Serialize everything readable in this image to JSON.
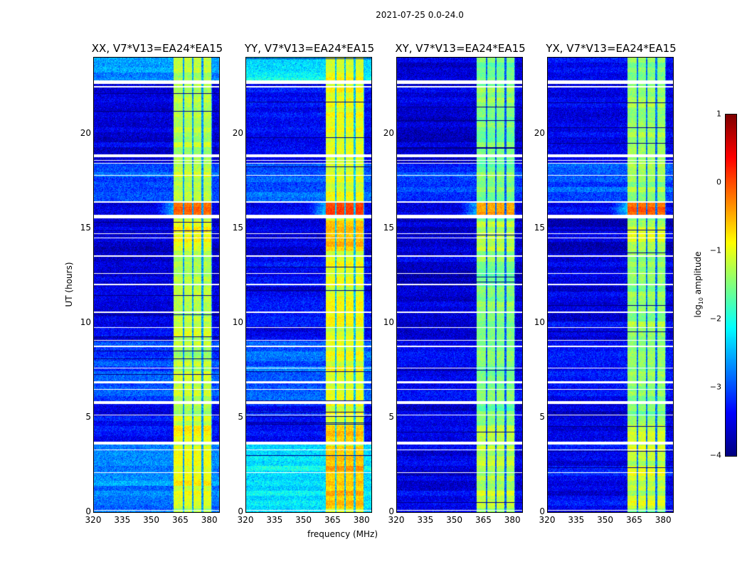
{
  "chart_data": {
    "type": "heatmap",
    "suptitle": "2021-07-25 0.0-24.0",
    "xlabel": "frequency (MHz)",
    "ylabel": "UT (hours)",
    "x_range": [
      320,
      384.7
    ],
    "y_range": [
      0,
      24
    ],
    "xticks": [
      "320",
      "335",
      "350",
      "365",
      "380"
    ],
    "xtick_values": [
      320,
      335,
      350,
      365,
      380
    ],
    "yticks": [
      "0",
      "5",
      "10",
      "15",
      "20"
    ],
    "ytick_values": [
      0,
      5,
      10,
      15,
      20
    ],
    "colorbar": {
      "label_main": "log",
      "label_sub": "10",
      "label_rest": " amplitude",
      "range": [
        -4,
        1
      ],
      "ticks": [
        "1",
        "0",
        "−1",
        "−2",
        "−3",
        "−4"
      ],
      "tick_values": [
        1,
        0,
        -1,
        -2,
        -3,
        -4
      ],
      "colormap": "jet"
    },
    "flagged_hours": [
      [
        22.6,
        22.78
      ],
      [
        22.42,
        22.48
      ],
      [
        18.75,
        18.9
      ],
      [
        18.55,
        18.6
      ],
      [
        18.4,
        18.45
      ],
      [
        17.75,
        17.8
      ],
      [
        16.35,
        16.4
      ],
      [
        15.5,
        15.7
      ],
      [
        14.7,
        14.74
      ],
      [
        14.45,
        14.5
      ],
      [
        13.5,
        13.56
      ],
      [
        12.58,
        12.63
      ],
      [
        12.0,
        12.04
      ],
      [
        10.5,
        10.6
      ],
      [
        9.72,
        9.78
      ],
      [
        9.05,
        9.1
      ],
      [
        8.72,
        8.78
      ],
      [
        7.6,
        7.64
      ],
      [
        6.8,
        6.9
      ],
      [
        6.45,
        6.5
      ],
      [
        5.7,
        5.85
      ],
      [
        5.1,
        5.15
      ],
      [
        3.55,
        3.72
      ],
      [
        3.25,
        3.3
      ],
      [
        2.05,
        2.1
      ],
      [
        0.08,
        0.13
      ]
    ],
    "rfi_channels_mhz": [
      [
        361.2,
        365.8
      ],
      [
        366.6,
        370.6
      ],
      [
        371.4,
        375.6
      ],
      [
        376.5,
        380.6
      ]
    ],
    "strong_rfi_hours": [
      [
        15.7,
        16.35
      ],
      [
        3.7,
        4.6
      ],
      [
        0.2,
        3.5
      ],
      [
        13.8,
        15.4
      ]
    ],
    "panels": [
      {
        "title": "XX, V7*V13=EA24*EA15",
        "background": [
          [
            22.7,
            24,
            -2.6
          ],
          [
            18.4,
            22.6,
            -3.5
          ],
          [
            16.4,
            18.4,
            -3.0
          ],
          [
            15.6,
            16.4,
            -3.5
          ],
          [
            13.5,
            15.5,
            -3.6
          ],
          [
            9,
            13.5,
            -3.5
          ],
          [
            5.8,
            9,
            -3.0
          ],
          [
            3.6,
            5.7,
            -3.4
          ],
          [
            0,
            3.6,
            -2.7
          ]
        ],
        "rfi_level": -1.2,
        "strong_level": -0.1
      },
      {
        "title": "YY, V7*V13=EA24*EA15",
        "background": [
          [
            22.7,
            24,
            -2.2
          ],
          [
            18.4,
            22.6,
            -3.4
          ],
          [
            16.4,
            18.4,
            -2.9
          ],
          [
            15.6,
            16.4,
            -3.4
          ],
          [
            13.5,
            15.5,
            -3.5
          ],
          [
            9,
            13.5,
            -3.4
          ],
          [
            5.8,
            9,
            -2.9
          ],
          [
            3.6,
            5.7,
            -3.3
          ],
          [
            0,
            3.6,
            -2.2
          ]
        ],
        "rfi_level": -1.0,
        "strong_level": 0.1
      },
      {
        "title": "XY, V7*V13=EA24*EA15",
        "background": [
          [
            22.7,
            24,
            -3.5
          ],
          [
            18.4,
            22.6,
            -3.6
          ],
          [
            16.4,
            18.4,
            -3.1
          ],
          [
            15.6,
            16.4,
            -3.5
          ],
          [
            13.5,
            15.5,
            -3.6
          ],
          [
            9,
            13.5,
            -3.6
          ],
          [
            5.8,
            9,
            -3.4
          ],
          [
            3.6,
            5.7,
            -3.5
          ],
          [
            0,
            3.6,
            -3.5
          ]
        ],
        "rfi_level": -1.5,
        "strong_level": -0.4
      },
      {
        "title": "YX, V7*V13=EA24*EA15",
        "background": [
          [
            22.7,
            24,
            -3.3
          ],
          [
            18.4,
            22.6,
            -3.5
          ],
          [
            16.4,
            18.4,
            -3.0
          ],
          [
            15.6,
            16.4,
            -3.5
          ],
          [
            13.5,
            15.5,
            -3.6
          ],
          [
            9,
            13.5,
            -3.5
          ],
          [
            5.8,
            9,
            -3.3
          ],
          [
            3.6,
            5.7,
            -3.5
          ],
          [
            0,
            3.6,
            -3.4
          ]
        ],
        "rfi_level": -1.4,
        "strong_level": -0.2
      }
    ]
  }
}
